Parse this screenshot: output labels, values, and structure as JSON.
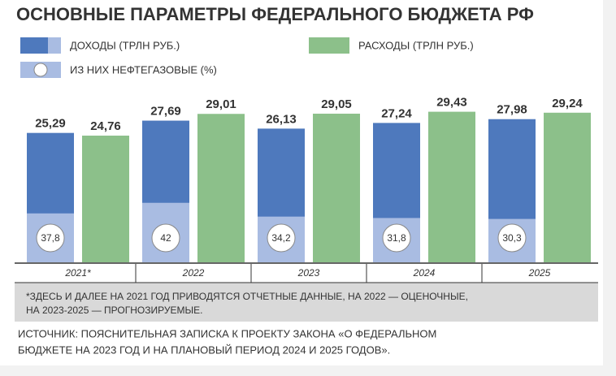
{
  "chart_data": {
    "type": "bar",
    "title": "ОСНОВНЫЕ ПАРАМЕТРЫ ФЕДЕРАЛЬНОГО БЮДЖЕТА РФ",
    "categories": [
      "2021*",
      "2022",
      "2023",
      "2024",
      "2025"
    ],
    "series": [
      {
        "name": "ДОХОДЫ (ТРЛН РУБ.)",
        "color": "#4e79bd",
        "values": [
          25.29,
          27.69,
          26.13,
          27.24,
          27.98
        ],
        "value_labels": [
          "25,29",
          "27,69",
          "26,13",
          "27,24",
          "27,98"
        ]
      },
      {
        "name": "РАСХОДЫ (ТРЛН РУБ.)",
        "color": "#8cc08a",
        "values": [
          24.76,
          29.01,
          29.05,
          29.43,
          29.24
        ],
        "value_labels": [
          "24,76",
          "29,01",
          "29,05",
          "29,43",
          "29,24"
        ]
      },
      {
        "name": "ИЗ НИХ НЕФТЕГАЗОВЫЕ (%)",
        "color": "#a9bce2",
        "values": [
          37.8,
          42,
          34.2,
          31.8,
          30.3
        ],
        "value_labels": [
          "37,8",
          "42",
          "34,2",
          "31,8",
          "30,3"
        ]
      }
    ],
    "footnote": [
      "*ЗДЕСЬ И ДАЛЕЕ НА 2021 ГОД ПРИВОДЯТСЯ ОТЧЕТНЫЕ ДАННЫЕ, НА 2022 — ОЦЕНОЧНЫЕ,",
      "НА 2023-2025 — ПРОГНОЗИРУЕМЫЕ."
    ],
    "source": [
      "ИСТОЧНИК: ПОЯСНИТЕЛЬНАЯ ЗАПИСКА К ПРОЕКТУ ЗАКОНА «О ФЕДЕРАЛЬНОМ",
      "БЮДЖЕТЕ НА 2023 ГОД И НА ПЛАНОВЫЙ ПЕРИОД 2024 И 2025 ГОДОВ»."
    ]
  }
}
